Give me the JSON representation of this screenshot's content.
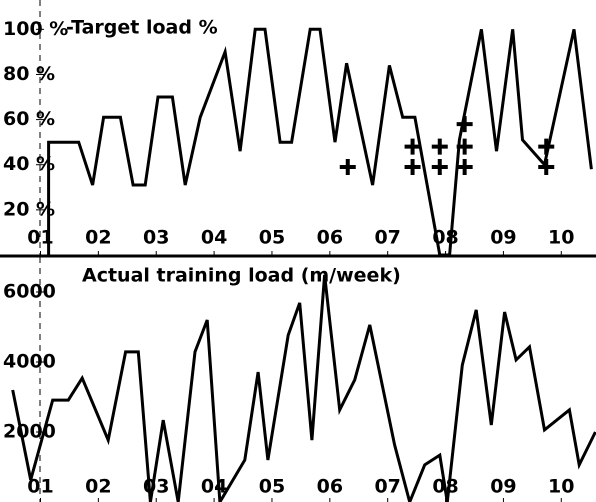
{
  "chart_data": [
    {
      "type": "line",
      "title": "-Target load %",
      "color": "#000000",
      "x": [
        1.14,
        1.14,
        1.66,
        1.9,
        2.09,
        2.38,
        2.6,
        2.81,
        3.03,
        3.28,
        3.5,
        3.76,
        4.19,
        4.45,
        4.71,
        4.88,
        5.14,
        5.34,
        5.66,
        5.83,
        6.09,
        6.29,
        6.74,
        7.03,
        7.26,
        7.47,
        7.9,
        8.07,
        8.24,
        8.62,
        8.88,
        9.16,
        9.33,
        9.71,
        10.22,
        10.52
      ],
      "values": [
        0,
        50,
        50,
        31,
        61,
        61,
        31,
        31,
        70,
        70,
        31,
        61,
        90,
        46,
        100,
        100,
        50,
        50,
        100,
        100,
        50,
        85,
        31,
        84,
        61,
        61,
        0,
        0,
        51,
        100,
        46,
        100,
        51,
        40,
        100,
        38
      ],
      "marker_x": [
        6.31,
        7.43,
        7.43,
        7.9,
        7.9,
        8.33,
        8.33,
        8.33,
        9.74,
        9.74
      ],
      "marker_values": [
        39,
        48,
        39,
        48,
        39,
        58,
        48,
        39,
        48,
        39
      ],
      "xlim": [
        0.3,
        10.6
      ],
      "ylim": [
        0,
        113
      ],
      "xticks": [
        {
          "value": 1,
          "label": "01"
        },
        {
          "value": 2,
          "label": "02"
        },
        {
          "value": 3,
          "label": "03"
        },
        {
          "value": 4,
          "label": "04"
        },
        {
          "value": 5,
          "label": "05"
        },
        {
          "value": 6,
          "label": "06"
        },
        {
          "value": 7,
          "label": "07"
        },
        {
          "value": 8,
          "label": "08"
        },
        {
          "value": 9,
          "label": "09"
        },
        {
          "value": 10,
          "label": "10"
        }
      ],
      "yticks": [
        {
          "value": 20,
          "label": "20 %"
        },
        {
          "value": 40,
          "label": "40 %"
        },
        {
          "value": 60,
          "label": "60 %"
        },
        {
          "value": 80,
          "label": "80 %"
        },
        {
          "value": 100,
          "label": "100 %"
        }
      ]
    },
    {
      "type": "line",
      "title": "Actual training load (m/week)",
      "color": "#000000",
      "x": [
        0.52,
        0.83,
        1.21,
        1.48,
        1.72,
        2.17,
        2.47,
        2.69,
        2.9,
        3.12,
        3.38,
        3.67,
        3.88,
        4.1,
        4.53,
        4.76,
        4.93,
        5.28,
        5.48,
        5.69,
        5.91,
        6.17,
        6.43,
        6.69,
        7.12,
        7.38,
        7.64,
        7.9,
        8.03,
        8.29,
        8.53,
        8.79,
        9.02,
        9.22,
        9.45,
        9.71,
        10.14,
        10.31,
        10.59
      ],
      "values": [
        3200,
        630,
        2910,
        2910,
        3540,
        1770,
        4290,
        4290,
        0,
        2340,
        0,
        4290,
        5200,
        0,
        1200,
        3710,
        1200,
        4770,
        5690,
        1770,
        6490,
        2630,
        3490,
        5060,
        1630,
        0,
        1060,
        1340,
        0,
        3910,
        5490,
        2200,
        5430,
        4060,
        4430,
        2060,
        2630,
        1060,
        2000
      ],
      "xlim": [
        0.3,
        10.6
      ],
      "ylim": [
        0,
        7000
      ],
      "xticks": [
        {
          "value": 1,
          "label": "01"
        },
        {
          "value": 2,
          "label": "02"
        },
        {
          "value": 3,
          "label": "03"
        },
        {
          "value": 4,
          "label": "04"
        },
        {
          "value": 5,
          "label": "05"
        },
        {
          "value": 6,
          "label": "06"
        },
        {
          "value": 7,
          "label": "07"
        },
        {
          "value": 8,
          "label": "08"
        },
        {
          "value": 9,
          "label": "09"
        },
        {
          "value": 10,
          "label": "10"
        }
      ],
      "yticks": [
        2000,
        4000,
        6000
      ]
    }
  ]
}
